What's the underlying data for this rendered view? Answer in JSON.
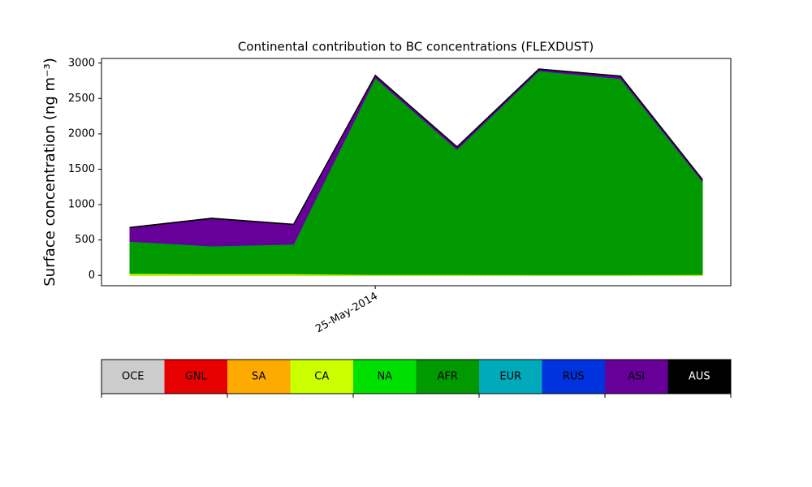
{
  "chart_data": {
    "type": "stacked-area",
    "title": "Continental contribution to BC concentrations (FLEXDUST)",
    "ylabel": "Surface concentration (ng m⁻³)",
    "categories": [
      null,
      null,
      null,
      "25-May-2014",
      null,
      null,
      null,
      null
    ],
    "ylim": [
      -146,
      3066
    ],
    "yticks": [
      0,
      500,
      1000,
      1500,
      2000,
      2500,
      3000
    ],
    "series": [
      {
        "name": "OCE",
        "color": "#cccccc",
        "values": [
          0,
          0,
          0,
          0,
          0,
          0,
          0,
          0
        ]
      },
      {
        "name": "GNL",
        "color": "#e60000",
        "values": [
          0,
          0,
          0,
          0,
          0,
          0,
          0,
          0
        ]
      },
      {
        "name": "SA",
        "color": "#ffaa00",
        "values": [
          0,
          0,
          0,
          0,
          0,
          0,
          0,
          0
        ]
      },
      {
        "name": "CA",
        "color": "#ccff00",
        "values": [
          25,
          20,
          20,
          10,
          10,
          8,
          8,
          10
        ]
      },
      {
        "name": "NA",
        "color": "#00e000",
        "values": [
          5,
          5,
          5,
          5,
          5,
          5,
          5,
          5
        ]
      },
      {
        "name": "AFR",
        "color": "#009900",
        "values": [
          450,
          390,
          415,
          2775,
          1765,
          2877,
          2767,
          1315
        ]
      },
      {
        "name": "EUR",
        "color": "#00aabb",
        "values": [
          0,
          0,
          0,
          0,
          0,
          0,
          0,
          0
        ]
      },
      {
        "name": "RUS",
        "color": "#0033dd",
        "values": [
          2,
          2,
          2,
          2,
          2,
          2,
          2,
          2
        ]
      },
      {
        "name": "ASI",
        "color": "#660099",
        "values": [
          190,
          385,
          275,
          30,
          30,
          20,
          30,
          20
        ]
      },
      {
        "name": "AUS",
        "color": "#000000",
        "values": [
          8,
          8,
          8,
          8,
          8,
          8,
          8,
          8
        ]
      }
    ]
  }
}
